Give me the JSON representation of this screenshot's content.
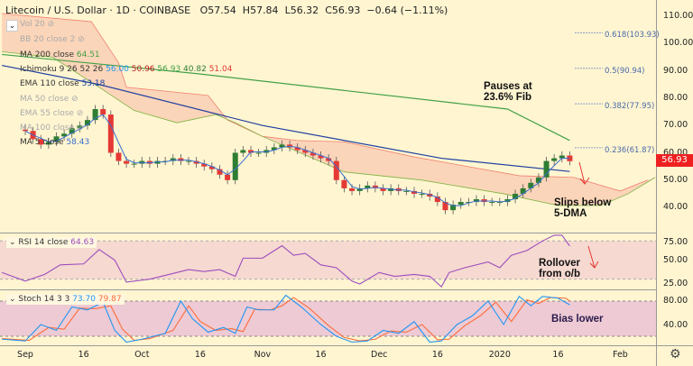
{
  "header": {
    "title": "Litecoin / U.S. Dollar · 1D · COINBASE",
    "open": "O57.54",
    "high": "H57.84",
    "low": "L56.32",
    "close": "C56.93",
    "change": "−0.64 (−1.11%)"
  },
  "legend": {
    "vol": "Vol 20",
    "bb": "BB 20 close 2",
    "ma200": {
      "label": "MA 200 close",
      "value": "64.51"
    },
    "ichimoku": {
      "label": "Ichimoku 9 26 52 26",
      "v1": "56.00",
      "v2": "50.96",
      "v3": "56.93",
      "v4": "40.82",
      "v5": "51.04"
    },
    "ema110": {
      "label": "EMA 110 close",
      "value": "53.18"
    },
    "ma50": "MA 50 close",
    "ema55": "EMA 55 close",
    "ma100": "MA 100 close",
    "ma5": {
      "label": "MA 5 close",
      "value": "58.43"
    }
  },
  "rsi_legend": {
    "label": "RSI 14 close",
    "value": "64.63"
  },
  "stoch_legend": {
    "label": "Stoch 14 3 3",
    "k": "73.70",
    "d": "79.87"
  },
  "annotations": {
    "fib_pause": "Pauses at\n23.6% Fib",
    "slips": "Slips below\n5-DMA",
    "rollover": "Rollover\nfrom o/b",
    "bias": "Bias lower"
  },
  "colors": {
    "background": "#fff5d1",
    "up": "#2e7d32",
    "down": "#e53935",
    "ma200": "#43a047",
    "ema110": "#1e3fa0",
    "ma5": "#3a6fd0",
    "cloud": "#f9c9b0",
    "rsi": "#9c4dbf",
    "stoch_k": "#2196f3",
    "stoch_d": "#ff6d3a",
    "price_tag": "#ef2020"
  },
  "chart_data": [
    {
      "type": "candlestick",
      "title": "Litecoin / U.S. Dollar · 1D · COINBASE",
      "ylim": [
        35,
        115
      ],
      "y_ticks": [
        "110.00",
        "100.00",
        "90.00",
        "80.00",
        "70.00",
        "60.00",
        "50.00",
        "40.00"
      ],
      "last_price": "56.93",
      "closes": [
        [
          "2019-09-01",
          68
        ],
        [
          "2019-09-03",
          65
        ],
        [
          "2019-09-05",
          63
        ],
        [
          "2019-09-07",
          64
        ],
        [
          "2019-09-09",
          66
        ],
        [
          "2019-09-11",
          67
        ],
        [
          "2019-09-13",
          69
        ],
        [
          "2019-09-15",
          70
        ],
        [
          "2019-09-17",
          72
        ],
        [
          "2019-09-19",
          76
        ],
        [
          "2019-09-21",
          74
        ],
        [
          "2019-09-23",
          60
        ],
        [
          "2019-09-25",
          57
        ],
        [
          "2019-09-27",
          56
        ],
        [
          "2019-09-29",
          56
        ],
        [
          "2019-10-01",
          57
        ],
        [
          "2019-10-03",
          56
        ],
        [
          "2019-10-05",
          57
        ],
        [
          "2019-10-07",
          57
        ],
        [
          "2019-10-09",
          58
        ],
        [
          "2019-10-11",
          57
        ],
        [
          "2019-10-13",
          57
        ],
        [
          "2019-10-15",
          56
        ],
        [
          "2019-10-17",
          55
        ],
        [
          "2019-10-19",
          54
        ],
        [
          "2019-10-21",
          52
        ],
        [
          "2019-10-23",
          50
        ],
        [
          "2019-10-25",
          60
        ],
        [
          "2019-10-27",
          61
        ],
        [
          "2019-10-29",
          60
        ],
        [
          "2019-10-31",
          60
        ],
        [
          "2019-11-02",
          61
        ],
        [
          "2019-11-04",
          62
        ],
        [
          "2019-11-06",
          63
        ],
        [
          "2019-11-08",
          62
        ],
        [
          "2019-11-10",
          61
        ],
        [
          "2019-11-12",
          60
        ],
        [
          "2019-11-14",
          59
        ],
        [
          "2019-11-16",
          58
        ],
        [
          "2019-11-18",
          57
        ],
        [
          "2019-11-20",
          50
        ],
        [
          "2019-11-22",
          47
        ],
        [
          "2019-11-24",
          46
        ],
        [
          "2019-11-26",
          47
        ],
        [
          "2019-11-28",
          48
        ],
        [
          "2019-11-30",
          47
        ],
        [
          "2019-12-02",
          46
        ],
        [
          "2019-12-04",
          47
        ],
        [
          "2019-12-06",
          46
        ],
        [
          "2019-12-08",
          46
        ],
        [
          "2019-12-10",
          45
        ],
        [
          "2019-12-12",
          45
        ],
        [
          "2019-12-14",
          44
        ],
        [
          "2019-12-16",
          42
        ],
        [
          "2019-12-18",
          39
        ],
        [
          "2019-12-20",
          41
        ],
        [
          "2019-12-22",
          42
        ],
        [
          "2019-12-24",
          42
        ],
        [
          "2019-12-26",
          43
        ],
        [
          "2019-12-28",
          42
        ],
        [
          "2019-12-30",
          42
        ],
        [
          "2020-01-01",
          42
        ],
        [
          "2020-01-03",
          43
        ],
        [
          "2020-01-05",
          45
        ],
        [
          "2020-01-07",
          47
        ],
        [
          "2020-01-09",
          49
        ],
        [
          "2020-01-11",
          51
        ],
        [
          "2020-01-13",
          57
        ],
        [
          "2020-01-15",
          58
        ],
        [
          "2020-01-17",
          59
        ],
        [
          "2020-01-19",
          56.93
        ]
      ],
      "ma200": [
        [
          "2019-08-26",
          96
        ],
        [
          "2019-10-15",
          89
        ],
        [
          "2020-01-03",
          76
        ],
        [
          "2020-01-19",
          64.51
        ]
      ],
      "ema110": [
        [
          "2019-08-26",
          92
        ],
        [
          "2019-09-20",
          85
        ],
        [
          "2019-11-01",
          70
        ],
        [
          "2019-12-17",
          58
        ],
        [
          "2020-01-19",
          53.18
        ]
      ],
      "cloud_upper": [
        [
          "2019-08-26",
          111
        ],
        [
          "2019-09-18",
          108
        ],
        [
          "2019-09-25",
          93
        ],
        [
          "2019-09-27",
          84
        ],
        [
          "2019-10-18",
          81
        ],
        [
          "2019-10-23",
          72
        ],
        [
          "2019-11-01",
          66
        ],
        [
          "2019-11-10",
          64.5
        ],
        [
          "2019-11-22",
          64
        ],
        [
          "2019-12-10",
          58.5
        ],
        [
          "2020-01-06",
          51.6
        ],
        [
          "2020-01-20",
          51
        ],
        [
          "2020-02-01",
          46
        ],
        [
          "2020-02-08",
          50
        ]
      ],
      "cloud_lower": [
        [
          "2019-08-26",
          97
        ],
        [
          "2019-09-08",
          95
        ],
        [
          "2019-09-20",
          84
        ],
        [
          "2019-09-29",
          75.5
        ],
        [
          "2019-10-10",
          71
        ],
        [
          "2019-10-20",
          74
        ],
        [
          "2019-10-25",
          71
        ],
        [
          "2019-11-01",
          66
        ],
        [
          "2019-11-22",
          53
        ],
        [
          "2019-12-12",
          50
        ],
        [
          "2020-01-02",
          45
        ],
        [
          "2020-01-16",
          40.7
        ],
        [
          "2020-01-27",
          40.7
        ],
        [
          "2020-02-03",
          45
        ],
        [
          "2020-02-10",
          51
        ]
      ],
      "fib_levels": [
        {
          "label": "0.618(103.93)",
          "value": 103.93
        },
        {
          "label": "0.5(90.94)",
          "value": 90.94
        },
        {
          "label": "0.382(77.95)",
          "value": 77.95
        },
        {
          "label": "0.236(61.87)",
          "value": 61.87
        }
      ],
      "x_ticks": [
        [
          "2019-09-01",
          "Sep"
        ],
        [
          "2019-09-16",
          "16"
        ],
        [
          "2019-10-01",
          "Oct"
        ],
        [
          "2019-10-16",
          "16"
        ],
        [
          "2019-11-01",
          "Nov"
        ],
        [
          "2019-11-16",
          "16"
        ],
        [
          "2019-12-01",
          "Dec"
        ],
        [
          "2019-12-16",
          "16"
        ],
        [
          "2020-01-01",
          "2020"
        ],
        [
          "2020-01-16",
          "16"
        ],
        [
          "2020-02-01",
          "Feb"
        ]
      ]
    },
    {
      "type": "line",
      "name": "RSI 14 close",
      "ylim": [
        20,
        78
      ],
      "y_ticks": [
        "75.00",
        "50.00",
        "25.00"
      ],
      "bands": [
        30,
        70
      ],
      "values": [
        [
          "2019-08-26",
          37
        ],
        [
          "2019-09-01",
          28
        ],
        [
          "2019-09-06",
          35
        ],
        [
          "2019-09-10",
          45
        ],
        [
          "2019-09-16",
          46
        ],
        [
          "2019-09-20",
          61
        ],
        [
          "2019-09-24",
          50
        ],
        [
          "2019-09-27",
          27
        ],
        [
          "2019-10-03",
          30
        ],
        [
          "2019-10-07",
          34
        ],
        [
          "2019-10-13",
          40
        ],
        [
          "2019-10-17",
          38
        ],
        [
          "2019-10-21",
          40
        ],
        [
          "2019-10-25",
          33
        ],
        [
          "2019-10-27",
          52
        ],
        [
          "2019-11-01",
          52
        ],
        [
          "2019-11-06",
          65
        ],
        [
          "2019-11-09",
          55
        ],
        [
          "2019-11-12",
          57
        ],
        [
          "2019-11-16",
          45
        ],
        [
          "2019-11-20",
          42
        ],
        [
          "2019-11-24",
          28
        ],
        [
          "2019-11-26",
          25
        ],
        [
          "2019-12-01",
          37
        ],
        [
          "2019-12-05",
          33
        ],
        [
          "2019-12-10",
          35
        ],
        [
          "2019-12-14",
          33
        ],
        [
          "2019-12-17",
          22
        ],
        [
          "2019-12-19",
          37
        ],
        [
          "2019-12-23",
          42
        ],
        [
          "2019-12-29",
          48
        ],
        [
          "2020-01-01",
          42
        ],
        [
          "2020-01-04",
          55
        ],
        [
          "2020-01-08",
          60
        ],
        [
          "2020-01-12",
          70
        ],
        [
          "2020-01-15",
          76
        ],
        [
          "2020-01-17",
          76
        ],
        [
          "2020-01-19",
          64.63
        ]
      ]
    },
    {
      "type": "line",
      "name": "Stoch 14 3 3",
      "ylim": [
        5,
        95
      ],
      "y_ticks": [
        "80.00",
        "40.00"
      ],
      "bands": [
        20,
        80
      ],
      "k": [
        [
          "2019-08-26",
          15
        ],
        [
          "2019-09-01",
          12
        ],
        [
          "2019-09-05",
          40
        ],
        [
          "2019-09-09",
          30
        ],
        [
          "2019-09-13",
          70
        ],
        [
          "2019-09-17",
          65
        ],
        [
          "2019-09-21",
          78
        ],
        [
          "2019-09-24",
          30
        ],
        [
          "2019-09-27",
          10
        ],
        [
          "2019-10-01",
          15
        ],
        [
          "2019-10-07",
          25
        ],
        [
          "2019-10-11",
          80
        ],
        [
          "2019-10-14",
          50
        ],
        [
          "2019-10-18",
          27
        ],
        [
          "2019-10-22",
          35
        ],
        [
          "2019-10-25",
          25
        ],
        [
          "2019-10-28",
          70
        ],
        [
          "2019-10-31",
          65
        ],
        [
          "2019-11-04",
          65
        ],
        [
          "2019-11-07",
          90
        ],
        [
          "2019-11-11",
          70
        ],
        [
          "2019-11-16",
          40
        ],
        [
          "2019-11-20",
          20
        ],
        [
          "2019-11-24",
          10
        ],
        [
          "2019-11-28",
          12
        ],
        [
          "2019-12-02",
          30
        ],
        [
          "2019-12-06",
          25
        ],
        [
          "2019-12-10",
          45
        ],
        [
          "2019-12-14",
          10
        ],
        [
          "2019-12-17",
          12
        ],
        [
          "2019-12-21",
          40
        ],
        [
          "2019-12-25",
          55
        ],
        [
          "2019-12-29",
          80
        ],
        [
          "2020-01-02",
          40
        ],
        [
          "2020-01-06",
          88
        ],
        [
          "2020-01-09",
          72
        ],
        [
          "2020-01-12",
          88
        ],
        [
          "2020-01-16",
          85
        ],
        [
          "2020-01-19",
          73.7
        ]
      ],
      "d": [
        [
          "2019-08-26",
          16
        ],
        [
          "2019-09-02",
          13
        ],
        [
          "2019-09-07",
          35
        ],
        [
          "2019-09-11",
          32
        ],
        [
          "2019-09-15",
          68
        ],
        [
          "2019-09-19",
          67
        ],
        [
          "2019-09-23",
          72
        ],
        [
          "2019-09-26",
          32
        ],
        [
          "2019-09-29",
          13
        ],
        [
          "2019-10-03",
          16
        ],
        [
          "2019-10-09",
          30
        ],
        [
          "2019-10-13",
          72
        ],
        [
          "2019-10-16",
          45
        ],
        [
          "2019-10-20",
          30
        ],
        [
          "2019-10-24",
          33
        ],
        [
          "2019-10-27",
          28
        ],
        [
          "2019-10-30",
          66
        ],
        [
          "2019-11-03",
          65
        ],
        [
          "2019-11-06",
          72
        ],
        [
          "2019-11-09",
          86
        ],
        [
          "2019-11-13",
          68
        ],
        [
          "2019-11-18",
          38
        ],
        [
          "2019-11-22",
          18
        ],
        [
          "2019-11-26",
          12
        ],
        [
          "2019-11-30",
          15
        ],
        [
          "2019-12-04",
          29
        ],
        [
          "2019-12-08",
          27
        ],
        [
          "2019-12-12",
          40
        ],
        [
          "2019-12-16",
          14
        ],
        [
          "2019-12-19",
          15
        ],
        [
          "2019-12-23",
          38
        ],
        [
          "2019-12-27",
          55
        ],
        [
          "2019-12-31",
          78
        ],
        [
          "2020-01-04",
          45
        ],
        [
          "2020-01-08",
          82
        ],
        [
          "2020-01-11",
          76
        ],
        [
          "2020-01-14",
          86
        ],
        [
          "2020-01-18",
          85
        ],
        [
          "2020-01-19",
          79.87
        ]
      ]
    }
  ]
}
